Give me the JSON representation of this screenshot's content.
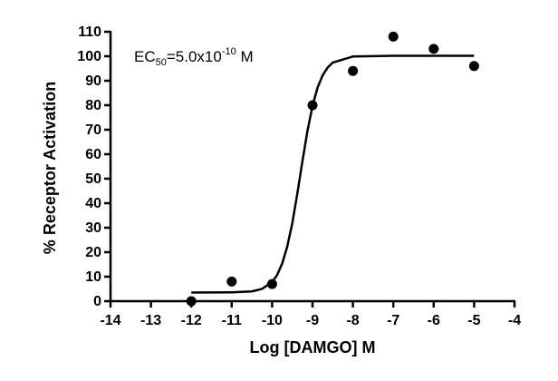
{
  "chart_data": {
    "type": "scatter",
    "xlabel": "Log [DAMGO] M",
    "ylabel": "% Receptor Activation",
    "annotation": [
      "EC",
      "50",
      "=5.0x10",
      "-10",
      " M"
    ],
    "series": [
      {
        "color": "#000000",
        "x": [
          -12,
          -11,
          -10,
          -9,
          -8,
          -7,
          -6,
          -5
        ],
        "values": [
          0,
          8,
          7,
          80,
          94,
          108,
          103,
          96
        ]
      }
    ],
    "fit": {
      "color": "#000000",
      "x": [
        -12,
        -11,
        -10.5,
        -10.25,
        -10,
        -9.875,
        -9.75,
        -9.625,
        -9.5,
        -9.375,
        -9.25,
        -9.125,
        -9,
        -8.875,
        -8.75,
        -8.625,
        -8.5,
        -8,
        -7,
        -6,
        -5
      ],
      "values": [
        3.5,
        3.6,
        4.0,
        5.0,
        7.8,
        10.7,
        15.4,
        22.3,
        31.9,
        44.0,
        57.1,
        69.5,
        79.7,
        87.2,
        92.2,
        95.4,
        97.4,
        99.9,
        100.2,
        100.2,
        100.2
      ]
    },
    "xlim": [
      -14,
      -4
    ],
    "xticks": [
      -14,
      -13,
      -12,
      -11,
      -10,
      -9,
      -8,
      -7,
      -6,
      -5,
      -4
    ],
    "ylim": [
      0,
      110
    ],
    "yticks": [
      0,
      10,
      20,
      30,
      40,
      50,
      60,
      70,
      80,
      90,
      100,
      110
    ]
  }
}
